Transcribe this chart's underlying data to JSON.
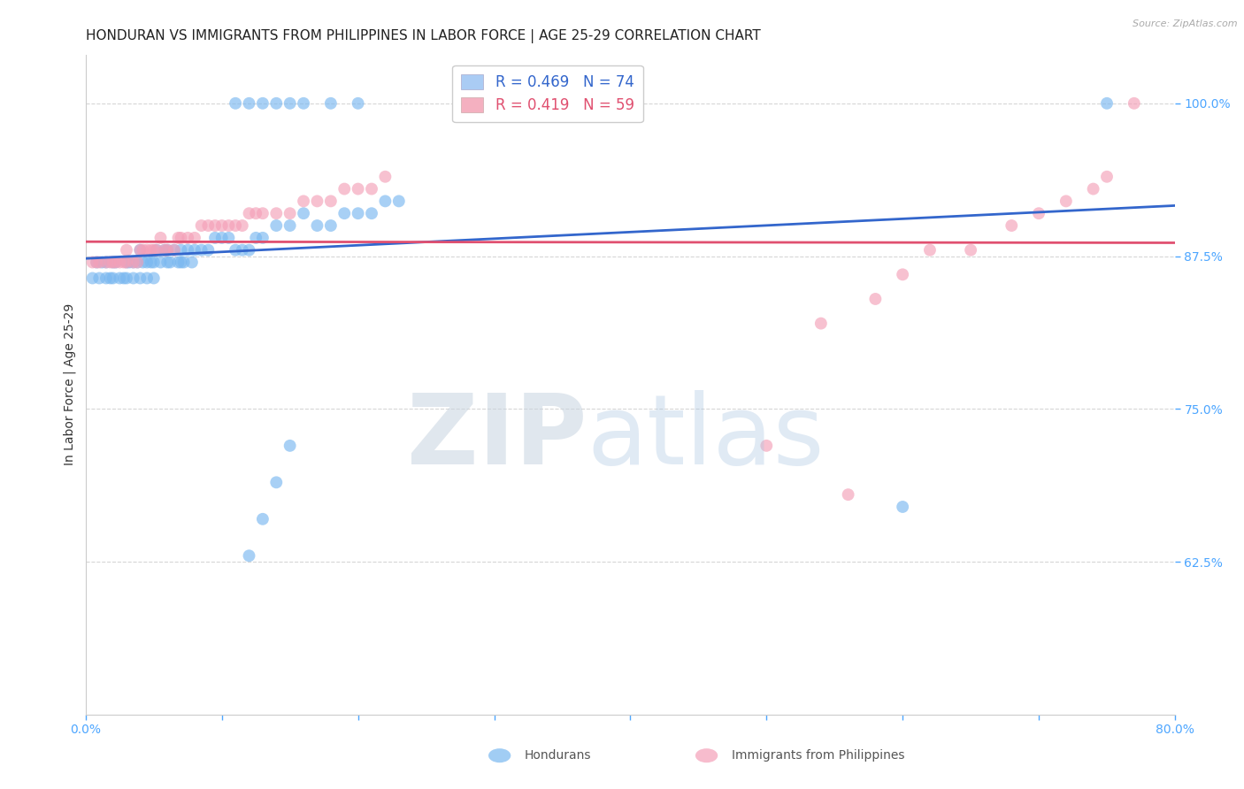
{
  "title": "HONDURAN VS IMMIGRANTS FROM PHILIPPINES IN LABOR FORCE | AGE 25-29 CORRELATION CHART",
  "source": "Source: ZipAtlas.com",
  "ylabel": "In Labor Force | Age 25-29",
  "xlim": [
    0.0,
    0.8
  ],
  "ylim": [
    0.5,
    1.04
  ],
  "xticks": [
    0.0,
    0.1,
    0.2,
    0.3,
    0.4,
    0.5,
    0.6,
    0.7,
    0.8
  ],
  "xticklabels": [
    "0.0%",
    "",
    "",
    "",
    "",
    "",
    "",
    "",
    "80.0%"
  ],
  "ytick_positions": [
    0.625,
    0.75,
    0.875,
    1.0
  ],
  "yticklabels": [
    "62.5%",
    "75.0%",
    "87.5%",
    "100.0%"
  ],
  "ytick_color": "#4da6ff",
  "xtick_color": "#4da6ff",
  "grid_color": "#cccccc",
  "background_color": "#ffffff",
  "honduran_color": "#7ab8f0",
  "phil_color": "#f4a0b8",
  "honduran_line_color": "#3366cc",
  "phil_line_color": "#e05070",
  "R_honduran": 0.469,
  "N_honduran": 74,
  "R_phil": 0.419,
  "N_phil": 59,
  "title_fontsize": 11,
  "label_fontsize": 10,
  "tick_fontsize": 10,
  "legend_fontsize": 12,
  "honduran_x": [
    0.005,
    0.008,
    0.01,
    0.012,
    0.015,
    0.015,
    0.018,
    0.02,
    0.02,
    0.022,
    0.025,
    0.028,
    0.03,
    0.03,
    0.032,
    0.035,
    0.035,
    0.038,
    0.04,
    0.04,
    0.042,
    0.045,
    0.045,
    0.048,
    0.05,
    0.05,
    0.052,
    0.055,
    0.058,
    0.06,
    0.06,
    0.062,
    0.065,
    0.068,
    0.07,
    0.07,
    0.072,
    0.075,
    0.078,
    0.08,
    0.085,
    0.09,
    0.095,
    0.1,
    0.105,
    0.11,
    0.115,
    0.12,
    0.125,
    0.13,
    0.14,
    0.15,
    0.16,
    0.17,
    0.18,
    0.19,
    0.2,
    0.21,
    0.22,
    0.23,
    0.11,
    0.12,
    0.13,
    0.14,
    0.15,
    0.16,
    0.18,
    0.2,
    0.12,
    0.13,
    0.14,
    0.15,
    0.6,
    0.75
  ],
  "honduran_y": [
    0.857,
    0.87,
    0.857,
    0.87,
    0.857,
    0.87,
    0.857,
    0.857,
    0.87,
    0.87,
    0.857,
    0.857,
    0.87,
    0.857,
    0.87,
    0.87,
    0.857,
    0.87,
    0.88,
    0.857,
    0.87,
    0.857,
    0.87,
    0.87,
    0.857,
    0.87,
    0.88,
    0.87,
    0.88,
    0.87,
    0.88,
    0.87,
    0.88,
    0.87,
    0.87,
    0.88,
    0.87,
    0.88,
    0.87,
    0.88,
    0.88,
    0.88,
    0.89,
    0.89,
    0.89,
    0.88,
    0.88,
    0.88,
    0.89,
    0.89,
    0.9,
    0.9,
    0.91,
    0.9,
    0.9,
    0.91,
    0.91,
    0.91,
    0.92,
    0.92,
    1.0,
    1.0,
    1.0,
    1.0,
    1.0,
    1.0,
    1.0,
    1.0,
    0.63,
    0.66,
    0.69,
    0.72,
    0.67,
    1.0
  ],
  "phil_x": [
    0.005,
    0.008,
    0.01,
    0.015,
    0.018,
    0.02,
    0.022,
    0.025,
    0.028,
    0.03,
    0.03,
    0.035,
    0.038,
    0.04,
    0.042,
    0.045,
    0.048,
    0.05,
    0.052,
    0.055,
    0.058,
    0.06,
    0.065,
    0.068,
    0.07,
    0.075,
    0.08,
    0.085,
    0.09,
    0.095,
    0.1,
    0.105,
    0.11,
    0.115,
    0.12,
    0.125,
    0.13,
    0.14,
    0.15,
    0.16,
    0.17,
    0.18,
    0.19,
    0.2,
    0.21,
    0.22,
    0.5,
    0.54,
    0.56,
    0.58,
    0.6,
    0.62,
    0.65,
    0.68,
    0.7,
    0.72,
    0.74,
    0.75,
    0.77
  ],
  "phil_y": [
    0.87,
    0.87,
    0.87,
    0.87,
    0.87,
    0.87,
    0.87,
    0.87,
    0.87,
    0.87,
    0.88,
    0.87,
    0.87,
    0.88,
    0.88,
    0.88,
    0.88,
    0.88,
    0.88,
    0.89,
    0.88,
    0.88,
    0.88,
    0.89,
    0.89,
    0.89,
    0.89,
    0.9,
    0.9,
    0.9,
    0.9,
    0.9,
    0.9,
    0.9,
    0.91,
    0.91,
    0.91,
    0.91,
    0.91,
    0.92,
    0.92,
    0.92,
    0.93,
    0.93,
    0.93,
    0.94,
    0.72,
    0.82,
    0.68,
    0.84,
    0.86,
    0.88,
    0.88,
    0.9,
    0.91,
    0.92,
    0.93,
    0.94,
    1.0
  ]
}
